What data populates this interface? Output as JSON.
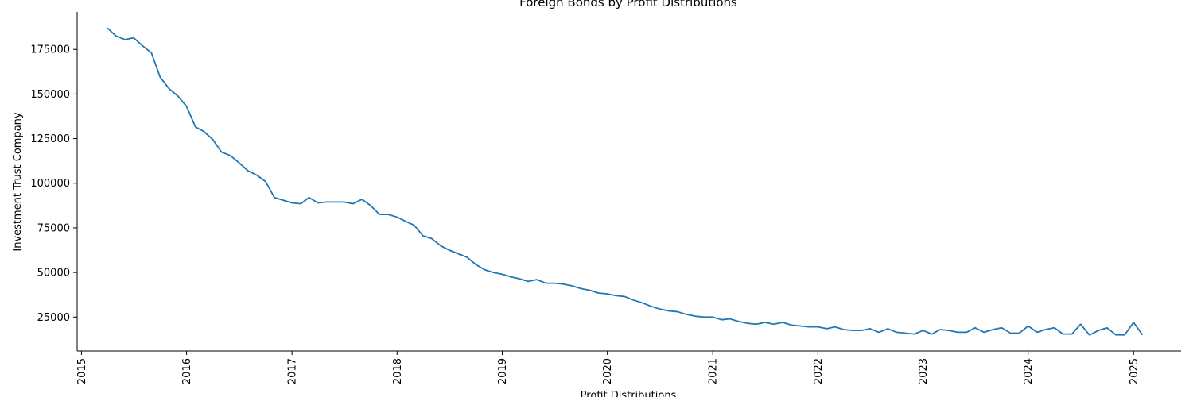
{
  "chart_data": {
    "type": "line",
    "title": "Foreign Bonds by Profit Distributions",
    "xlabel": "Profit Distributions",
    "ylabel": "Investment Trust Company",
    "x_ticks": [
      "2015",
      "2016",
      "2017",
      "2018",
      "2019",
      "2020",
      "2021",
      "2022",
      "2023",
      "2024",
      "2025"
    ],
    "y_ticks": [
      "25000",
      "50000",
      "75000",
      "100000",
      "125000",
      "150000",
      "175000"
    ],
    "xlim": [
      "2014-12-17",
      "2025-06-15"
    ],
    "ylim": [
      6000,
      196000
    ],
    "grid": false,
    "color": "#1f77b4",
    "series": [
      {
        "x": [
          "2015-04",
          "2015-05",
          "2015-06",
          "2015-07",
          "2015-08",
          "2015-09",
          "2015-10",
          "2015-11",
          "2015-12",
          "2016-01",
          "2016-02",
          "2016-03",
          "2016-04",
          "2016-05",
          "2016-06",
          "2016-07",
          "2016-08",
          "2016-09",
          "2016-10",
          "2016-11",
          "2016-12",
          "2017-01",
          "2017-02",
          "2017-03",
          "2017-04",
          "2017-05",
          "2017-06",
          "2017-07",
          "2017-08",
          "2017-09",
          "2017-10",
          "2017-11",
          "2017-12",
          "2018-01",
          "2018-02",
          "2018-03",
          "2018-04",
          "2018-05",
          "2018-06",
          "2018-07",
          "2018-08",
          "2018-09",
          "2018-10",
          "2018-11",
          "2018-12",
          "2019-01",
          "2019-02",
          "2019-03",
          "2019-04",
          "2019-05",
          "2019-06",
          "2019-07",
          "2019-08",
          "2019-09",
          "2019-10",
          "2019-11",
          "2019-12",
          "2020-01",
          "2020-02",
          "2020-03",
          "2020-04",
          "2020-05",
          "2020-06",
          "2020-07",
          "2020-08",
          "2020-09",
          "2020-10",
          "2020-11",
          "2020-12",
          "2021-01",
          "2021-02",
          "2021-03",
          "2021-04",
          "2021-05",
          "2021-06",
          "2021-07",
          "2021-08",
          "2021-09",
          "2021-10",
          "2021-11",
          "2021-12",
          "2022-01",
          "2022-02",
          "2022-03",
          "2022-04",
          "2022-05",
          "2022-06",
          "2022-07",
          "2022-08",
          "2022-09",
          "2022-10",
          "2022-11",
          "2022-12",
          "2023-01",
          "2023-02",
          "2023-03",
          "2023-04",
          "2023-05",
          "2023-06",
          "2023-07",
          "2023-08",
          "2023-09",
          "2023-10",
          "2023-11",
          "2023-12",
          "2024-01",
          "2024-02",
          "2024-03",
          "2024-04",
          "2024-05",
          "2024-06",
          "2024-07",
          "2024-08",
          "2024-09",
          "2024-10",
          "2024-11",
          "2024-12",
          "2025-01",
          "2025-02"
        ],
        "values": [
          187000,
          182500,
          180500,
          181500,
          177000,
          173000,
          159500,
          153000,
          149000,
          143000,
          131500,
          129000,
          124500,
          117500,
          115500,
          111500,
          107000,
          104500,
          101000,
          92000,
          90500,
          89000,
          88500,
          92000,
          89000,
          89500,
          89500,
          89500,
          88500,
          91000,
          87500,
          82500,
          82500,
          81000,
          78500,
          76500,
          70500,
          69000,
          65000,
          62500,
          60500,
          58500,
          54500,
          51500,
          50000,
          49000,
          47500,
          46500,
          45000,
          46000,
          44000,
          44000,
          43500,
          42500,
          41000,
          40000,
          38500,
          38000,
          37000,
          36500,
          34500,
          33000,
          31000,
          29500,
          28500,
          28000,
          26500,
          25500,
          25000,
          25000,
          23500,
          24000,
          22500,
          21500,
          21000,
          22000,
          21000,
          22000,
          20500,
          20000,
          19500,
          19500,
          18500,
          19500,
          18000,
          17500,
          17500,
          18500,
          16500,
          18500,
          16500,
          16000,
          15500,
          17500,
          15500,
          18000,
          17500,
          16500,
          16500,
          19000,
          16500,
          18000,
          19000,
          16000,
          16000,
          20000,
          16500,
          18000,
          19000,
          15500,
          15500,
          21000,
          15000,
          17500,
          19000,
          15000,
          15000,
          22000,
          15000
        ]
      }
    ]
  }
}
